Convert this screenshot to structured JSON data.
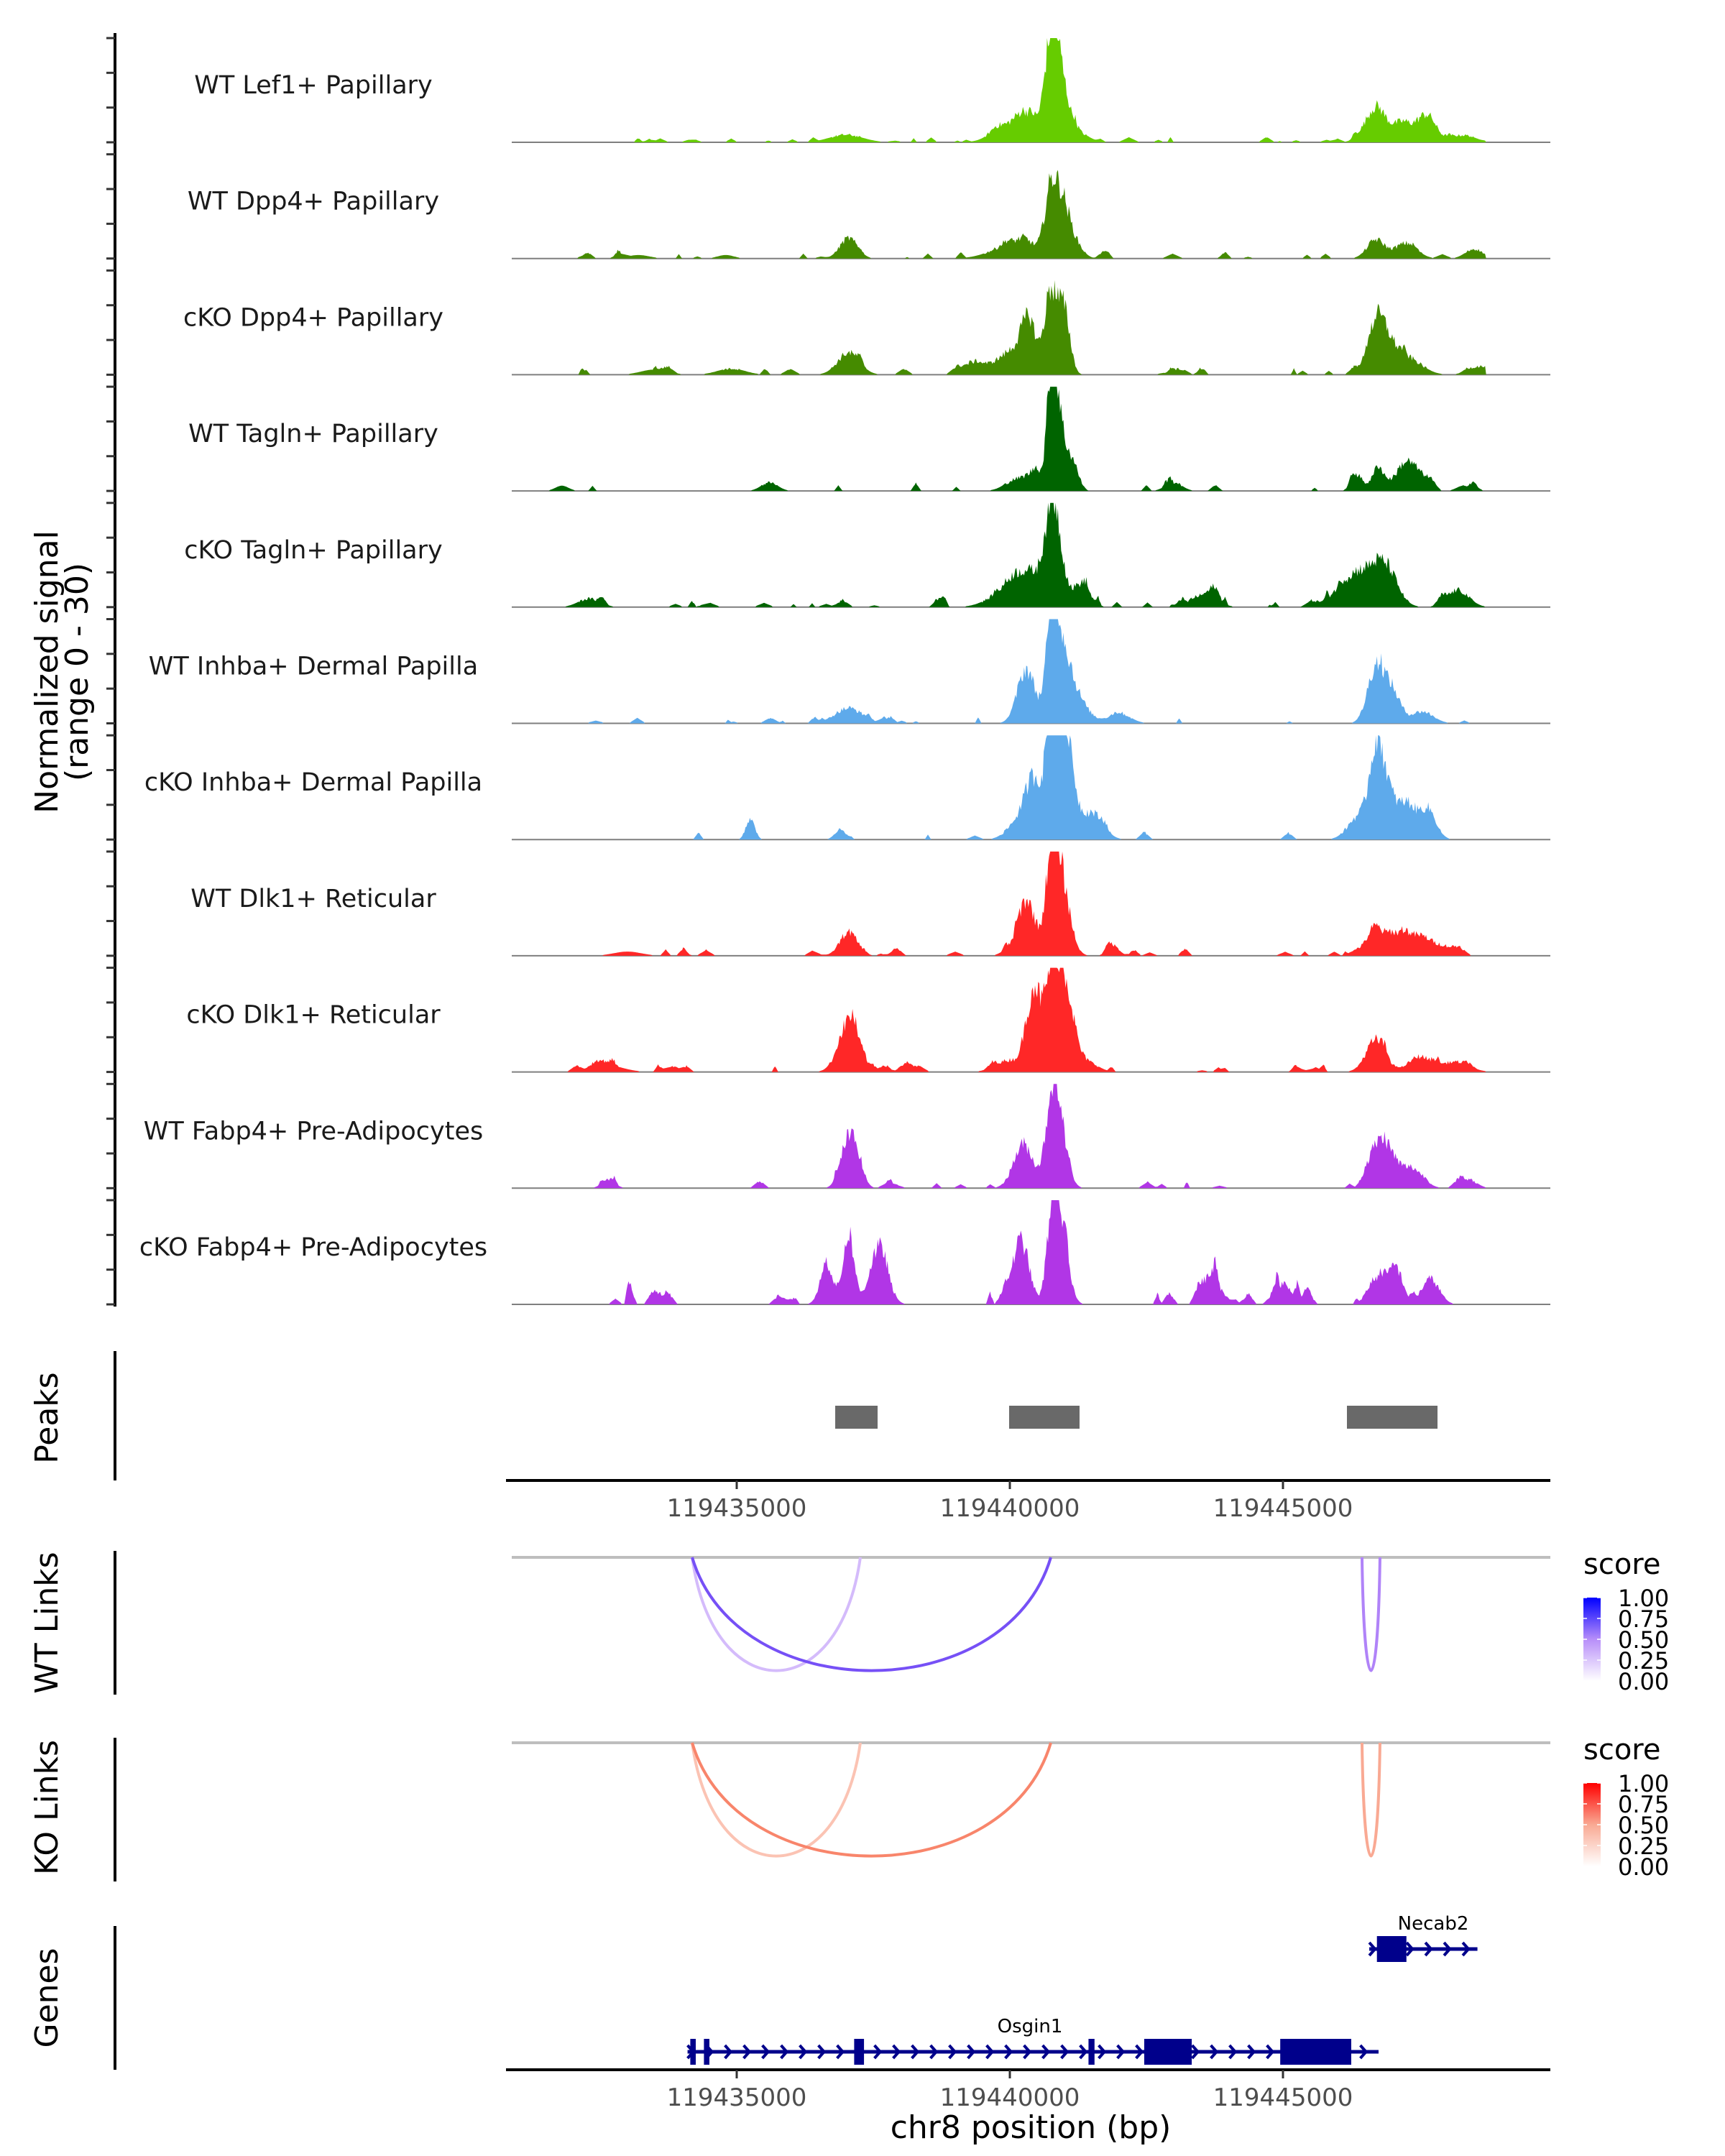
{
  "chart_data": {
    "type": "area",
    "title": "",
    "region": {
      "chrom": "chr8",
      "start": 119430780,
      "end": 119449880
    },
    "xlabel": "chr8 position (bp)",
    "x_ticks": [
      119435000,
      119440000,
      119445000
    ],
    "x_tick_labels": [
      "119435000",
      "119440000",
      "119445000"
    ],
    "coverage": {
      "ylabel_line1": "Normalized signal",
      "ylabel_line2": "(range 0 - 30)",
      "ylim": [
        0,
        30
      ],
      "tracks": [
        {
          "label": "WT Lef1+ Papillary",
          "color": "#66cc00",
          "peaks": [
            [
              119437000,
              2.2,
              300
            ],
            [
              119439900,
              4.5,
              250
            ],
            [
              119440300,
              8.0,
              180
            ],
            [
              119440750,
              23.0,
              120
            ],
            [
              119440900,
              17.5,
              160
            ],
            [
              119441250,
              2.5,
              200
            ],
            [
              119446700,
              10.0,
              200
            ],
            [
              119447200,
              5.5,
              160
            ],
            [
              119447600,
              7.5,
              160
            ],
            [
              119448200,
              2.0,
              300
            ]
          ],
          "noise": 0.8,
          "noise_density": 0.55
        },
        {
          "label": "WT Dpp4+ Papillary",
          "color": "#458b00",
          "peaks": [
            [
              119433200,
              1.0,
              200
            ],
            [
              119434800,
              1.0,
              150
            ],
            [
              119437050,
              6.0,
              160
            ],
            [
              119440150,
              5.0,
              400
            ],
            [
              119440750,
              18.0,
              110
            ],
            [
              119440950,
              14.0,
              120
            ],
            [
              119441150,
              5.5,
              150
            ],
            [
              119446700,
              5.5,
              160
            ],
            [
              119447250,
              4.5,
              200
            ],
            [
              119448500,
              2.8,
              160
            ]
          ],
          "noise": 0.9,
          "noise_density": 0.35
        },
        {
          "label": "cKO Dpp4+ Papillary",
          "color": "#458b00",
          "peaks": [
            [
              119433500,
              1.5,
              250
            ],
            [
              119434900,
              1.8,
              250
            ],
            [
              119437050,
              6.5,
              200
            ],
            [
              119439500,
              2.5,
              300
            ],
            [
              119440100,
              7.0,
              250
            ],
            [
              119440350,
              12.0,
              130
            ],
            [
              119440750,
              22.0,
              110
            ],
            [
              119440980,
              18.0,
              110
            ],
            [
              119446700,
              12.0,
              160
            ],
            [
              119446900,
              7.5,
              200
            ],
            [
              119447300,
              4.5,
              250
            ],
            [
              119448600,
              2.5,
              200
            ]
          ],
          "noise": 1.0,
          "noise_density": 0.7
        },
        {
          "label": "WT Tagln+ Papillary",
          "color": "#006400",
          "peaks": [
            [
              119431800,
              1.5,
              120
            ],
            [
              119435600,
              2.5,
              150
            ],
            [
              119440100,
              3.0,
              200
            ],
            [
              119440500,
              4.0,
              200
            ],
            [
              119440760,
              30.0,
              80
            ],
            [
              119440880,
              20.0,
              100
            ],
            [
              119441100,
              9.0,
              120
            ],
            [
              119443000,
              2.5,
              150
            ],
            [
              119446350,
              4.8,
              100
            ],
            [
              119446750,
              6.0,
              130
            ],
            [
              119447220,
              7.5,
              160
            ],
            [
              119447500,
              4.5,
              160
            ],
            [
              119448300,
              1.5,
              120
            ]
          ],
          "noise": 1.2,
          "noise_density": 0.3
        },
        {
          "label": "cKO Tagln+ Papillary",
          "color": "#006400",
          "peaks": [
            [
              119432300,
              2.5,
              200
            ],
            [
              119439900,
              4.0,
              300
            ],
            [
              119440200,
              6.5,
              200
            ],
            [
              119440530,
              7.0,
              200
            ],
            [
              119440760,
              21.0,
              120
            ],
            [
              119440900,
              12.0,
              140
            ],
            [
              119441350,
              5.0,
              150
            ],
            [
              119443600,
              4.0,
              200
            ],
            [
              119446200,
              6.0,
              300
            ],
            [
              119446600,
              7.5,
              300
            ],
            [
              119446900,
              8.0,
              200
            ],
            [
              119448200,
              5.0,
              200
            ]
          ],
          "noise": 1.1,
          "noise_density": 0.65
        },
        {
          "label": "WT Inhba+ Dermal Papilla",
          "color": "#5eaaeb",
          "peaks": [
            [
              119437050,
              4.5,
              250
            ],
            [
              119440300,
              16.0,
              160
            ],
            [
              119440780,
              30.0,
              110
            ],
            [
              119440980,
              17.0,
              160
            ],
            [
              119441250,
              6.0,
              200
            ],
            [
              119442000,
              3.0,
              200
            ],
            [
              119446700,
              16.5,
              150
            ],
            [
              119447000,
              9.0,
              150
            ],
            [
              119447550,
              3.5,
              200
            ]
          ],
          "noise": 1.0,
          "noise_density": 0.45
        },
        {
          "label": "cKO Inhba+ Dermal Papilla",
          "color": "#5eaaeb",
          "peaks": [
            [
              119435250,
              6.0,
              80
            ],
            [
              119436900,
              3.0,
              100
            ],
            [
              119440150,
              5.0,
              200
            ],
            [
              119440450,
              17.0,
              160
            ],
            [
              119440800,
              42.0,
              110
            ],
            [
              119441000,
              35.0,
              150
            ],
            [
              119441500,
              8.0,
              200
            ],
            [
              119446400,
              7.0,
              200
            ],
            [
              119446700,
              21.0,
              120
            ],
            [
              119446900,
              14.0,
              160
            ],
            [
              119447280,
              10.0,
              150
            ],
            [
              119447650,
              9.0,
              150
            ]
          ],
          "noise": 1.2,
          "noise_density": 0.3
        },
        {
          "label": "WT Dlk1+ Reticular",
          "color": "#ff2727",
          "peaks": [
            [
              119433000,
              1.2,
              250
            ],
            [
              119437050,
              7.0,
              160
            ],
            [
              119440300,
              16.0,
              170
            ],
            [
              119440780,
              30.0,
              110
            ],
            [
              119440960,
              19.0,
              150
            ],
            [
              119446700,
              8.0,
              160
            ],
            [
              119447150,
              5.5,
              200
            ],
            [
              119447550,
              5.0,
              200
            ],
            [
              119448000,
              2.5,
              200
            ]
          ],
          "noise": 0.9,
          "noise_density": 0.5
        },
        {
          "label": "cKO Dlk1+ Reticular",
          "color": "#ff2727",
          "peaks": [
            [
              119432600,
              2.0,
              300
            ],
            [
              119437060,
              14.5,
              190
            ],
            [
              119440000,
              3.5,
              250
            ],
            [
              119440450,
              25.0,
              130
            ],
            [
              119440780,
              28.0,
              110
            ],
            [
              119441020,
              24.0,
              150
            ],
            [
              119441400,
              3.0,
              200
            ],
            [
              119446700,
              9.5,
              180
            ],
            [
              119447500,
              4.5,
              200
            ],
            [
              119448150,
              3.0,
              250
            ]
          ],
          "noise": 1.0,
          "noise_density": 0.75
        },
        {
          "label": "WT Fabp4+ Pre-Adipocytes",
          "color": "#b136e6",
          "peaks": [
            [
              119432650,
              2.5,
              120
            ],
            [
              119437000,
              9.5,
              130
            ],
            [
              119437180,
              10.0,
              120
            ],
            [
              119440250,
              13.0,
              180
            ],
            [
              119440780,
              26.0,
              110
            ],
            [
              119440940,
              14.0,
              130
            ],
            [
              119446700,
              11.0,
              150
            ],
            [
              119446950,
              8.5,
              150
            ],
            [
              119447350,
              6.0,
              200
            ],
            [
              119448400,
              2.5,
              150
            ]
          ],
          "noise": 1.2,
          "noise_density": 0.4
        },
        {
          "label": "cKO Fabp4+ Pre-Adipocytes",
          "color": "#b136e6",
          "peaks": [
            [
              119436650,
              11.5,
              120
            ],
            [
              119437050,
              21.0,
              100
            ],
            [
              119437600,
              17.0,
              160
            ],
            [
              119440200,
              19.0,
              150
            ],
            [
              119440780,
              26.0,
              100
            ],
            [
              119440950,
              18.0,
              130
            ],
            [
              119443700,
              9.0,
              130
            ],
            [
              119445000,
              6.0,
              150
            ],
            [
              119446700,
              7.5,
              150
            ],
            [
              119447050,
              8.0,
              150
            ],
            [
              119447700,
              7.5,
              160
            ]
          ],
          "noise": 2.5,
          "noise_density": 0.55
        }
      ]
    },
    "peaks_track": {
      "label": "Peaks",
      "color": "#696969",
      "regions": [
        [
          119436803,
          119437579
        ],
        [
          119439987,
          119441276
        ],
        [
          119446171,
          119447829
        ]
      ]
    },
    "links_tracks": [
      {
        "label": "WT Links",
        "legend_title": "score",
        "color_high": "#0000ff",
        "legend_ticks": [
          "1.00",
          "0.75",
          "0.50",
          "0.25",
          "0.00"
        ],
        "links": [
          {
            "start": 119434184,
            "end": 119437263,
            "score": 0.3
          },
          {
            "start": 119434184,
            "end": 119440750,
            "score": 0.8
          },
          {
            "start": 119446447,
            "end": 119446776,
            "score": 0.55
          }
        ]
      },
      {
        "label": "KO Links",
        "legend_title": "score",
        "color_high": "#ff0000",
        "legend_ticks": [
          "1.00",
          "0.75",
          "0.50",
          "0.25",
          "0.00"
        ],
        "links": [
          {
            "start": 119434184,
            "end": 119437263,
            "score": 0.35
          },
          {
            "start": 119434184,
            "end": 119440750,
            "score": 0.75
          },
          {
            "start": 119446447,
            "end": 119446776,
            "score": 0.5
          }
        ]
      }
    ],
    "genes_track": {
      "label": "Genes",
      "color": "#00008b",
      "genes": [
        {
          "name": "Osgin1",
          "strand": "+",
          "start": 119434100,
          "end": 119446750,
          "exons": [
            [
              119434150,
              119434250
            ],
            [
              119434400,
              119434500
            ],
            [
              119437150,
              119437330
            ],
            [
              119441440,
              119441550
            ],
            [
              119442460,
              119443330
            ],
            [
              119444950,
              119446250
            ]
          ]
        },
        {
          "name": "Necab2",
          "strand": "+",
          "start": 119446580,
          "end": 119448560,
          "exons": [
            [
              119446720,
              119447260
            ]
          ]
        }
      ]
    }
  }
}
